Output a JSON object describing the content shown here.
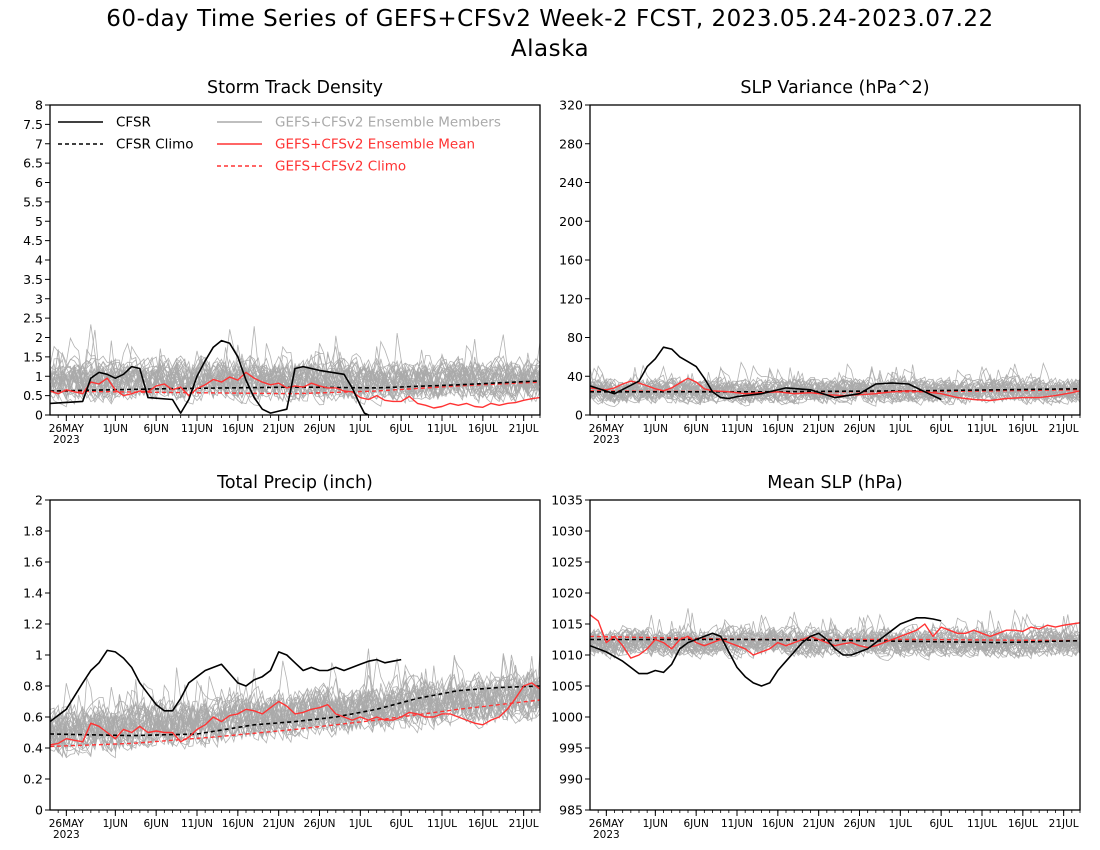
{
  "page": {
    "title": "60-day Time Series of GEFS+CFSv2 Week-2 FCST, 2023.05.24-2023.07.22",
    "subtitle": "Alaska"
  },
  "colors": {
    "cfsr": "#000000",
    "ensemble_members": "#aaaaaa",
    "ensemble_mean": "#ff3333",
    "gefs_climo": "#ff3333"
  },
  "legend": {
    "cfsr": "CFSR",
    "cfsr_climo": "CFSR Climo",
    "members": "GEFS+CFSv2 Ensemble Members",
    "mean": "GEFS+CFSv2 Ensemble Mean",
    "gefs_climo": "GEFS+CFSv2 Climo"
  },
  "x_ticks": [
    {
      "day": 2,
      "label": "26MAY",
      "sub": "2023"
    },
    {
      "day": 8,
      "label": "1JUN",
      "sub": ""
    },
    {
      "day": 13,
      "label": "6JUN",
      "sub": ""
    },
    {
      "day": 18,
      "label": "11JUN",
      "sub": ""
    },
    {
      "day": 23,
      "label": "16JUN",
      "sub": ""
    },
    {
      "day": 28,
      "label": "21JUN",
      "sub": ""
    },
    {
      "day": 33,
      "label": "26JUN",
      "sub": ""
    },
    {
      "day": 38,
      "label": "1JUL",
      "sub": ""
    },
    {
      "day": 43,
      "label": "6JUL",
      "sub": ""
    },
    {
      "day": 48,
      "label": "11JUL",
      "sub": ""
    },
    {
      "day": 53,
      "label": "16JUL",
      "sub": ""
    },
    {
      "day": 58,
      "label": "21JUL",
      "sub": ""
    }
  ],
  "chart_data": [
    {
      "type": "line",
      "title": "Storm Track Density",
      "ylim": [
        0,
        8
      ],
      "yticks": [
        "0",
        "0.5",
        "1",
        "1.5",
        "2",
        "2.5",
        "3",
        "3.5",
        "4",
        "4.5",
        "5",
        "5.5",
        "6",
        "6.5",
        "7",
        "7.5",
        "8"
      ],
      "member_noise": {
        "mean": 0.9,
        "spread": 0.75,
        "max": 4.8,
        "min": 0,
        "count": 30
      },
      "series": [
        {
          "name": "CFSR",
          "style": "cfsr",
          "x": [
            0,
            4,
            5,
            6,
            7,
            8,
            9,
            10,
            11,
            12,
            15,
            16,
            17,
            18,
            19,
            20,
            21,
            22,
            23,
            24,
            25,
            26,
            27,
            28,
            29,
            30,
            31,
            32,
            33,
            36,
            37,
            38,
            38.5,
            39
          ],
          "y": [
            0.3,
            0.35,
            0.95,
            1.1,
            1.05,
            0.95,
            1.05,
            1.25,
            1.2,
            0.45,
            0.4,
            0.05,
            0.4,
            1.0,
            1.4,
            1.75,
            1.92,
            1.85,
            1.5,
            0.9,
            0.45,
            0.15,
            0.05,
            0.1,
            0.15,
            1.2,
            1.25,
            1.2,
            1.15,
            1.05,
            0.7,
            0.25,
            0.05,
            0
          ]
        },
        {
          "name": "CFSR Climo",
          "style": "cfsr_climo",
          "x": [
            0,
            15,
            30,
            40,
            50,
            60
          ],
          "y": [
            0.62,
            0.68,
            0.72,
            0.7,
            0.78,
            0.88
          ]
        },
        {
          "name": "GEFS+CFSv2 Ensemble Mean",
          "style": "mean",
          "x": [
            0,
            1,
            2,
            3,
            4,
            5,
            6,
            7,
            8,
            9,
            10,
            11,
            12,
            13,
            14,
            15,
            16,
            17,
            18,
            19,
            20,
            21,
            22,
            23,
            24,
            25,
            26,
            27,
            28,
            29,
            30,
            31,
            32,
            33,
            34,
            35,
            36,
            37,
            38,
            39,
            40,
            41,
            42,
            43,
            44,
            45,
            46,
            47,
            48,
            49,
            50,
            51,
            52,
            53,
            54,
            55,
            56,
            57,
            58,
            59,
            60
          ],
          "y": [
            0.62,
            0.55,
            0.65,
            0.6,
            0.55,
            0.85,
            0.8,
            0.95,
            0.65,
            0.5,
            0.55,
            0.62,
            0.6,
            0.75,
            0.8,
            0.65,
            0.72,
            0.5,
            0.68,
            0.78,
            0.92,
            0.85,
            0.98,
            0.9,
            1.1,
            0.95,
            0.85,
            0.78,
            0.82,
            0.7,
            0.75,
            0.72,
            0.82,
            0.75,
            0.7,
            0.7,
            0.62,
            0.6,
            0.45,
            0.4,
            0.5,
            0.38,
            0.35,
            0.35,
            0.48,
            0.3,
            0.25,
            0.18,
            0.22,
            0.3,
            0.25,
            0.3,
            0.22,
            0.2,
            0.3,
            0.25,
            0.3,
            0.32,
            0.38,
            0.42,
            0.45
          ]
        },
        {
          "name": "GEFS+CFSv2 Climo",
          "style": "gefs_climo",
          "x": [
            0,
            15,
            30,
            40,
            50,
            60
          ],
          "y": [
            0.62,
            0.58,
            0.55,
            0.62,
            0.75,
            0.85
          ]
        }
      ]
    },
    {
      "type": "line",
      "title": "SLP Variance (hPa^2)",
      "ylim": [
        0,
        320
      ],
      "yticks": [
        "0",
        "40",
        "80",
        "120",
        "160",
        "200",
        "240",
        "280",
        "320"
      ],
      "member_noise": {
        "mean": 25,
        "spread": 18,
        "max": 98,
        "min": 2,
        "count": 30
      },
      "series": [
        {
          "name": "CFSR",
          "style": "cfsr",
          "x": [
            0,
            3,
            6,
            7,
            8,
            9,
            10,
            11,
            12,
            13,
            14,
            15,
            16,
            17,
            18,
            19,
            21,
            24,
            27,
            30,
            33,
            35,
            37,
            39,
            41,
            43
          ],
          "y": [
            30,
            22,
            35,
            50,
            58,
            70,
            68,
            60,
            55,
            50,
            38,
            24,
            18,
            17,
            19,
            20,
            22,
            28,
            26,
            18,
            22,
            32,
            33,
            32,
            24,
            16
          ]
        },
        {
          "name": "CFSR Climo",
          "style": "cfsr_climo",
          "x": [
            0,
            20,
            40,
            60
          ],
          "y": [
            24,
            24,
            25,
            27
          ]
        },
        {
          "name": "GEFS+CFSv2 Ensemble Mean",
          "style": "mean",
          "x": [
            0,
            2,
            3,
            4,
            5,
            6,
            7,
            8,
            9,
            10,
            11,
            12,
            13,
            14,
            15,
            17,
            19,
            21,
            23,
            25,
            27,
            29,
            31,
            33,
            35,
            37,
            39,
            41,
            43,
            45,
            47,
            49,
            51,
            53,
            55,
            57,
            59,
            60
          ],
          "y": [
            28,
            26,
            28,
            32,
            35,
            33,
            30,
            27,
            25,
            28,
            33,
            38,
            34,
            27,
            25,
            24,
            22,
            23,
            24,
            22,
            23,
            21,
            20,
            21,
            22,
            24,
            25,
            24,
            22,
            18,
            16,
            15,
            17,
            18,
            18,
            20,
            23,
            25
          ]
        },
        {
          "name": "GEFS+CFSv2 Climo",
          "style": "gefs_climo",
          "x": [
            0,
            20,
            40,
            60
          ],
          "y": [
            25,
            24,
            24,
            26
          ]
        }
      ]
    },
    {
      "type": "line",
      "title": "Total Precip (inch)",
      "ylim": [
        0,
        2
      ],
      "yticks": [
        "0",
        "0.2",
        "0.4",
        "0.6",
        "0.8",
        "1",
        "1.2",
        "1.4",
        "1.6",
        "1.8",
        "2"
      ],
      "member_noise": {
        "mean": 0.5,
        "spread": 0.22,
        "max": 1.45,
        "min": 0.08,
        "count": 30,
        "trend": 0.25
      },
      "series": [
        {
          "name": "CFSR",
          "style": "cfsr",
          "x": [
            0,
            2,
            4,
            5,
            6,
            7,
            8,
            9,
            10,
            11,
            12,
            13,
            14,
            15,
            16,
            17,
            18,
            19,
            20,
            21,
            22,
            23,
            24,
            25,
            26,
            27,
            28,
            29,
            30,
            31,
            32,
            33,
            34,
            35,
            36,
            37,
            38,
            39,
            40,
            41,
            42,
            43
          ],
          "y": [
            0.57,
            0.65,
            0.82,
            0.9,
            0.95,
            1.03,
            1.02,
            0.98,
            0.92,
            0.82,
            0.75,
            0.68,
            0.64,
            0.64,
            0.72,
            0.82,
            0.86,
            0.9,
            0.92,
            0.94,
            0.88,
            0.82,
            0.8,
            0.84,
            0.86,
            0.9,
            1.02,
            1.0,
            0.95,
            0.9,
            0.92,
            0.9,
            0.9,
            0.92,
            0.9,
            0.92,
            0.94,
            0.96,
            0.97,
            0.95,
            0.96,
            0.97
          ]
        },
        {
          "name": "CFSR Climo",
          "style": "cfsr_climo",
          "x": [
            0,
            10,
            18,
            25,
            30,
            35,
            40,
            45,
            50,
            55,
            60
          ],
          "y": [
            0.49,
            0.48,
            0.49,
            0.55,
            0.57,
            0.6,
            0.65,
            0.72,
            0.77,
            0.79,
            0.8
          ]
        },
        {
          "name": "GEFS+CFSv2 Ensemble Mean",
          "style": "mean",
          "x": [
            0,
            1,
            2,
            3,
            4,
            5,
            6,
            7,
            8,
            9,
            10,
            11,
            12,
            13,
            14,
            15,
            16,
            17,
            18,
            19,
            20,
            21,
            22,
            23,
            24,
            25,
            26,
            27,
            28,
            29,
            30,
            31,
            32,
            33,
            34,
            35,
            36,
            37,
            38,
            39,
            40,
            41,
            42,
            43,
            44,
            45,
            46,
            47,
            48,
            49,
            50,
            51,
            52,
            53,
            54,
            55,
            56,
            57,
            58,
            59,
            60
          ],
          "y": [
            0.42,
            0.43,
            0.46,
            0.45,
            0.44,
            0.56,
            0.54,
            0.5,
            0.46,
            0.52,
            0.5,
            0.54,
            0.5,
            0.51,
            0.5,
            0.5,
            0.44,
            0.47,
            0.52,
            0.55,
            0.6,
            0.57,
            0.61,
            0.62,
            0.65,
            0.64,
            0.62,
            0.66,
            0.7,
            0.67,
            0.62,
            0.63,
            0.65,
            0.66,
            0.68,
            0.62,
            0.6,
            0.58,
            0.6,
            0.58,
            0.6,
            0.58,
            0.58,
            0.6,
            0.63,
            0.62,
            0.6,
            0.6,
            0.62,
            0.62,
            0.6,
            0.58,
            0.56,
            0.55,
            0.58,
            0.6,
            0.65,
            0.72,
            0.8,
            0.82,
            0.78
          ]
        },
        {
          "name": "GEFS+CFSv2 Climo",
          "style": "gefs_climo",
          "x": [
            0,
            10,
            20,
            30,
            40,
            50,
            60
          ],
          "y": [
            0.41,
            0.43,
            0.47,
            0.52,
            0.58,
            0.65,
            0.71
          ]
        }
      ]
    },
    {
      "type": "line",
      "title": "Mean SLP (hPa)",
      "ylim": [
        985,
        1035
      ],
      "yticks": [
        "985",
        "990",
        "995",
        "1000",
        "1005",
        "1010",
        "1015",
        "1020",
        "1025",
        "1030",
        "1035"
      ],
      "member_noise": {
        "mean": 1012,
        "spread": 3.2,
        "max": 1025,
        "min": 1000,
        "count": 30
      },
      "series": [
        {
          "name": "CFSR",
          "style": "cfsr",
          "x": [
            0,
            2,
            4,
            5,
            6,
            7,
            8,
            9,
            10,
            11,
            12,
            13,
            14,
            15,
            16,
            17,
            18,
            19,
            20,
            21,
            22,
            23,
            24,
            25,
            26,
            27,
            28,
            29,
            30,
            31,
            32,
            33,
            34,
            35,
            36,
            37,
            38,
            39,
            40,
            41,
            42,
            43
          ],
          "y": [
            1011.5,
            1010.5,
            1009,
            1008,
            1007,
            1007,
            1007.5,
            1007.2,
            1008.5,
            1011,
            1012,
            1012.5,
            1013,
            1013.5,
            1013,
            1010.5,
            1008,
            1006.5,
            1005.5,
            1005,
            1005.5,
            1007.5,
            1009,
            1010.5,
            1012,
            1013,
            1013.5,
            1012.5,
            1011,
            1010,
            1010,
            1010.5,
            1011,
            1012,
            1013,
            1014,
            1015,
            1015.5,
            1016,
            1016,
            1015.8,
            1015.5
          ]
        },
        {
          "name": "CFSR Climo",
          "style": "cfsr_climo",
          "x": [
            0,
            20,
            40,
            50,
            60
          ],
          "y": [
            1012.5,
            1012.5,
            1012.2,
            1012,
            1012.3
          ]
        },
        {
          "name": "GEFS+CFSv2 Ensemble Mean",
          "style": "mean",
          "x": [
            0,
            1,
            2,
            3,
            4,
            5,
            6,
            7,
            8,
            9,
            10,
            11,
            12,
            13,
            14,
            15,
            16,
            17,
            18,
            19,
            20,
            21,
            22,
            23,
            24,
            25,
            26,
            27,
            28,
            29,
            30,
            31,
            32,
            33,
            34,
            35,
            36,
            37,
            38,
            39,
            40,
            41,
            42,
            43,
            44,
            45,
            46,
            47,
            48,
            49,
            50,
            51,
            52,
            53,
            54,
            55,
            56,
            57,
            58,
            59,
            60
          ],
          "y": [
            1016.5,
            1015.5,
            1012,
            1013,
            1011.5,
            1009.5,
            1010,
            1011,
            1012.5,
            1012,
            1011,
            1012.5,
            1013,
            1012,
            1011.5,
            1012,
            1012.5,
            1012,
            1011.5,
            1011,
            1010,
            1010.5,
            1011,
            1012,
            1011.5,
            1012,
            1012.5,
            1013,
            1012.5,
            1012,
            1011.5,
            1011.8,
            1012,
            1011.5,
            1011.2,
            1011.5,
            1012,
            1012.5,
            1013,
            1013.5,
            1014,
            1015,
            1013,
            1014.5,
            1014,
            1013.5,
            1013.5,
            1014,
            1013.5,
            1013,
            1013.5,
            1014,
            1014,
            1013.8,
            1014.5,
            1014.2,
            1014.8,
            1014.5,
            1014.8,
            1015,
            1015.2
          ]
        },
        {
          "name": "GEFS+CFSv2 Climo",
          "style": "gefs_climo",
          "x": [
            0,
            20,
            40,
            60
          ],
          "y": [
            1013,
            1012.5,
            1012.5,
            1012.3
          ]
        }
      ]
    }
  ]
}
